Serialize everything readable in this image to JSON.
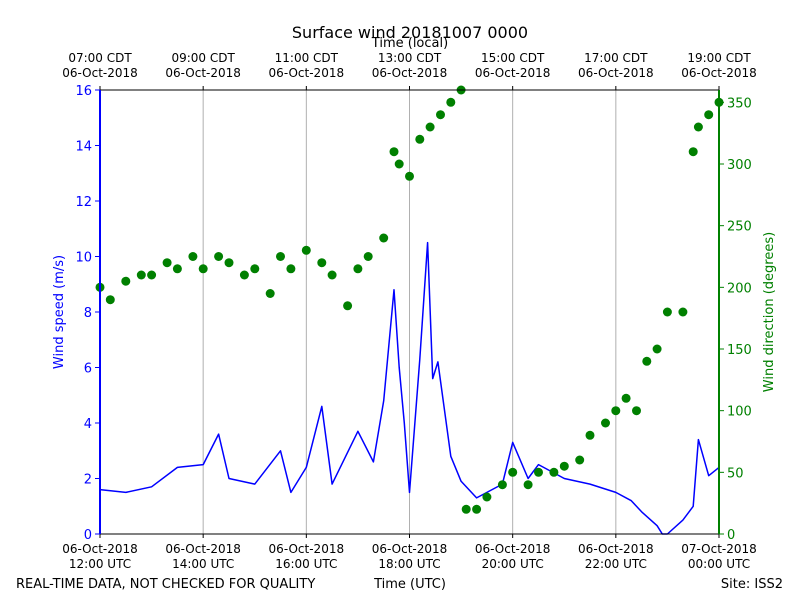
{
  "chart_data": {
    "type": "line+scatter",
    "title": "Surface wind 20181007 0000",
    "footer_left": "REAL-TIME DATA, NOT CHECKED FOR QUALITY",
    "xlabel": "Time (UTC)",
    "xlabel_top": "Time (local)",
    "footer_right": "Site: ISS2",
    "x_range_hours_utc": [
      12,
      24
    ],
    "x_ticks_hours": [
      12,
      14,
      16,
      18,
      20,
      22,
      24
    ],
    "x_tick_labels_bottom": [
      [
        "06-Oct-2018",
        "12:00 UTC"
      ],
      [
        "06-Oct-2018",
        "14:00 UTC"
      ],
      [
        "06-Oct-2018",
        "16:00 UTC"
      ],
      [
        "06-Oct-2018",
        "18:00 UTC"
      ],
      [
        "06-Oct-2018",
        "20:00 UTC"
      ],
      [
        "06-Oct-2018",
        "22:00 UTC"
      ],
      [
        "07-Oct-2018",
        "00:00 UTC"
      ]
    ],
    "x_tick_labels_top": [
      [
        "07:00 CDT",
        "06-Oct-2018"
      ],
      [
        "09:00 CDT",
        "06-Oct-2018"
      ],
      [
        "11:00 CDT",
        "06-Oct-2018"
      ],
      [
        "13:00 CDT",
        "06-Oct-2018"
      ],
      [
        "15:00 CDT",
        "06-Oct-2018"
      ],
      [
        "17:00 CDT",
        "06-Oct-2018"
      ],
      [
        "19:00 CDT",
        "06-Oct-2018"
      ]
    ],
    "y_left": {
      "label": "Wind speed (m/s)",
      "range": [
        0,
        16
      ],
      "ticks": [
        0,
        2,
        4,
        6,
        8,
        10,
        12,
        14,
        16
      ],
      "color": "#0000ff"
    },
    "y_right": {
      "label": "Wind direction (degrees)",
      "range": [
        0,
        360
      ],
      "ticks": [
        0,
        50,
        100,
        150,
        200,
        250,
        300,
        350
      ],
      "color": "#008000"
    },
    "grid": "vertical",
    "series": [
      {
        "name": "Wind speed",
        "kind": "line",
        "axis": "left",
        "units": "m/s",
        "x_hours_utc": [
          12.0,
          12.5,
          13.0,
          13.5,
          14.0,
          14.3,
          14.5,
          15.0,
          15.5,
          15.7,
          16.0,
          16.3,
          16.5,
          17.0,
          17.3,
          17.5,
          17.7,
          17.8,
          17.9,
          18.0,
          18.2,
          18.35,
          18.45,
          18.55,
          18.8,
          19.0,
          19.3,
          19.5,
          19.8,
          20.0,
          20.3,
          20.5,
          21.0,
          21.5,
          22.0,
          22.3,
          22.5,
          22.8,
          22.9,
          23.0,
          23.3,
          23.5,
          23.6,
          23.8,
          24.0
        ],
        "values": [
          1.6,
          1.5,
          1.7,
          2.4,
          2.5,
          3.6,
          2.0,
          1.8,
          3.0,
          1.5,
          2.4,
          4.6,
          1.8,
          3.7,
          2.6,
          4.8,
          8.8,
          6.0,
          4.0,
          1.5,
          6.3,
          10.5,
          5.6,
          6.2,
          2.8,
          1.9,
          1.3,
          1.5,
          1.8,
          3.3,
          2.0,
          2.5,
          2.0,
          1.8,
          1.5,
          1.2,
          0.8,
          0.3,
          0.0,
          0.0,
          0.5,
          1.0,
          3.4,
          2.1,
          2.4
        ]
      },
      {
        "name": "Wind direction",
        "kind": "scatter",
        "axis": "right",
        "units": "degrees",
        "x_hours_utc": [
          12.0,
          12.2,
          12.5,
          12.8,
          13.0,
          13.3,
          13.5,
          13.8,
          14.0,
          14.3,
          14.5,
          14.8,
          15.0,
          15.3,
          15.5,
          15.7,
          16.0,
          16.3,
          16.5,
          16.8,
          17.0,
          17.2,
          17.5,
          17.7,
          17.8,
          18.0,
          18.2,
          18.4,
          18.6,
          18.8,
          19.0,
          19.1,
          19.3,
          19.5,
          19.8,
          20.0,
          20.3,
          20.5,
          20.8,
          21.0,
          21.3,
          21.5,
          21.8,
          22.0,
          22.2,
          22.4,
          22.6,
          22.8,
          23.0,
          23.3,
          23.5,
          23.6,
          23.8,
          24.0
        ],
        "values": [
          200,
          190,
          205,
          210,
          210,
          220,
          215,
          225,
          215,
          225,
          220,
          210,
          215,
          195,
          225,
          215,
          230,
          220,
          210,
          185,
          215,
          225,
          240,
          310,
          300,
          290,
          320,
          330,
          340,
          350,
          360,
          20,
          20,
          30,
          40,
          50,
          40,
          50,
          50,
          55,
          60,
          80,
          90,
          100,
          110,
          100,
          140,
          150,
          180,
          180,
          310,
          330,
          340,
          350
        ]
      }
    ]
  }
}
